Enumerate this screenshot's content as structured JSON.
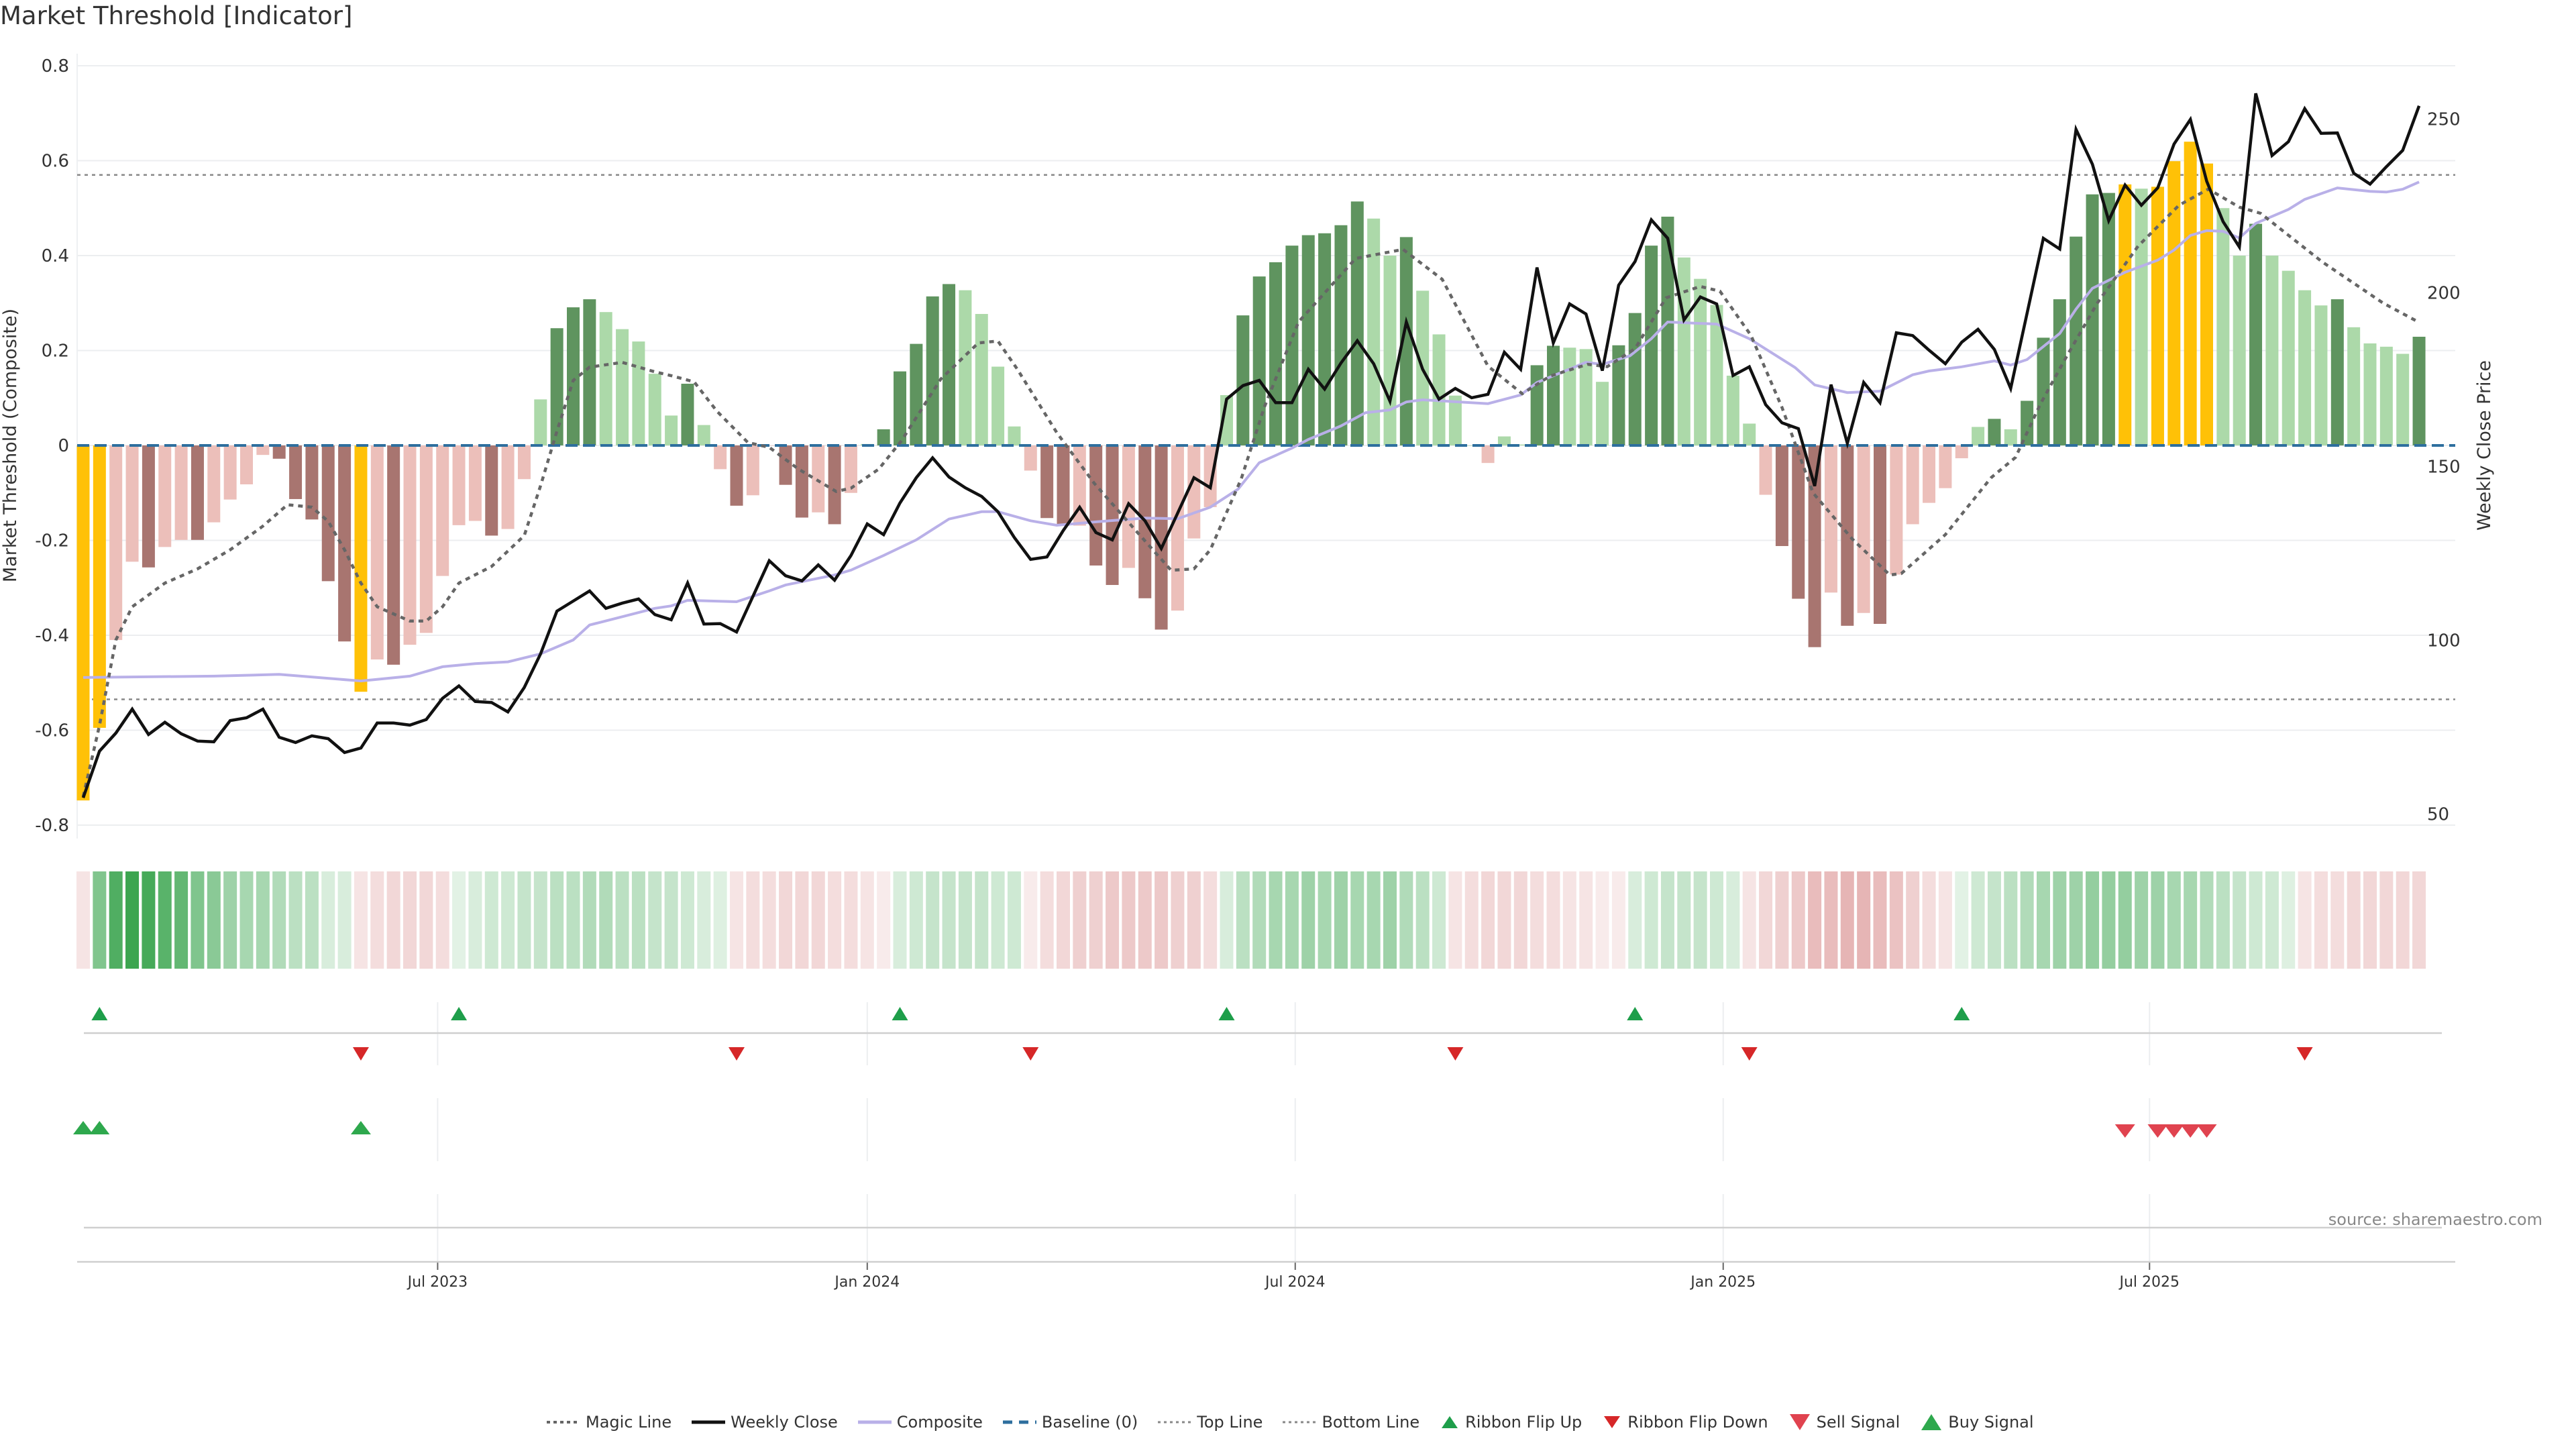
{
  "title": "Market Threshold [Indicator]",
  "source": "source: sharemaestro.com",
  "legend": {
    "magic_line": "Magic Line",
    "weekly_close": "Weekly Close",
    "composite": "Composite",
    "baseline": "Baseline (0)",
    "top_line": "Top Line",
    "bottom_line": "Bottom Line",
    "ribbon_flip_up": "Ribbon Flip Up",
    "ribbon_flip_down": "Ribbon Flip Down",
    "sell_signal": "Sell Signal",
    "buy_signal": "Buy Signal"
  },
  "colors": {
    "Y": "#FFC107",
    "G": "#5f945f",
    "g": "#acd9a9",
    "R": "#a87570",
    "r": "#ecbfba",
    "weekly_close": "#111111",
    "composite": "#b9b0e8",
    "magic": "#666666",
    "baseline": "#2e6f9e",
    "threshold_lines": "#888888",
    "flip_up": "#1e9e4a",
    "flip_down": "#d62728",
    "sell": "#e0434f",
    "buy": "#2ea84d",
    "ribbon_green": [
      60,
      165,
      80
    ],
    "ribbon_red": [
      210,
      120,
      120
    ]
  },
  "chart_data": {
    "type": "bar",
    "title": "Market Threshold [Indicator]",
    "ylabel": "Market Threshold (Composite)",
    "ylabel_right": "Weekly Close Price",
    "ylim": [
      -0.8,
      0.8
    ],
    "ylim_right": [
      50,
      250
    ],
    "yticks": [
      "0.8",
      "0.6",
      "0.4",
      "0.2",
      "0",
      "-0.2",
      "-0.4",
      "-0.6",
      "-0.8"
    ],
    "yticks_right": [
      "250",
      "200",
      "150",
      "100",
      "50"
    ],
    "x_unit": "week index",
    "xticks": [
      {
        "label": "Jul 2023",
        "week": 21.7
      },
      {
        "label": "Jan 2024",
        "week": 48.0
      },
      {
        "label": "Jul 2024",
        "week": 74.2
      },
      {
        "label": "Jan 2025",
        "week": 100.4
      },
      {
        "label": "Jul 2025",
        "week": 126.5
      }
    ],
    "top_line": 0.57,
    "bottom_line": -0.535,
    "baseline": 0,
    "composite_bars": [
      -0.748,
      -0.595,
      -0.41,
      -0.245,
      -0.257,
      -0.214,
      -0.199,
      -0.199,
      -0.162,
      -0.114,
      -0.082,
      -0.02,
      -0.028,
      -0.113,
      -0.156,
      -0.286,
      -0.413,
      -0.519,
      -0.451,
      -0.462,
      -0.42,
      -0.395,
      -0.275,
      -0.168,
      -0.159,
      -0.19,
      -0.176,
      -0.071,
      0.097,
      0.247,
      0.291,
      0.308,
      0.281,
      0.245,
      0.219,
      0.151,
      0.063,
      0.13,
      0.043,
      -0.05,
      -0.127,
      -0.105,
      0,
      -0.083,
      -0.152,
      -0.141,
      -0.166,
      -0.1,
      0.003,
      0.034,
      0.156,
      0.214,
      0.314,
      0.34,
      0.327,
      0.277,
      0.166,
      0.04,
      -0.053,
      -0.153,
      -0.169,
      -0.169,
      -0.253,
      -0.294,
      -0.258,
      -0.322,
      -0.388,
      -0.348,
      -0.196,
      -0.13,
      0.106,
      0.274,
      0.356,
      0.386,
      0.421,
      0.443,
      0.447,
      0.464,
      0.514,
      0.478,
      0.4,
      0.439,
      0.326,
      0.234,
      0.105,
      0,
      -0.037,
      0.019,
      0.002,
      0.169,
      0.21,
      0.206,
      0.203,
      0.134,
      0.211,
      0.279,
      0.421,
      0.482,
      0.396,
      0.351,
      0.296,
      0.147,
      0.046,
      -0.104,
      -0.212,
      -0.323,
      -0.425,
      -0.31,
      -0.38,
      -0.353,
      -0.376,
      -0.272,
      -0.166,
      -0.121,
      -0.09,
      -0.027,
      0.039,
      0.056,
      0.034,
      0.094,
      0.227,
      0.308,
      0.44,
      0.529,
      0.532,
      0.55,
      0.541,
      0.545,
      0.599,
      0.64,
      0.594,
      0.5,
      0.4,
      0.467,
      0.4,
      0.368,
      0.327,
      0.295,
      0.308,
      0.249,
      0.215,
      0.208,
      0.193,
      0.229
    ],
    "bar_color_codes": "YYrrRrrRrrrrRRRRRYrRrrrrrRrrgGGGgggggGgrRrrRRrRrgGGGGGggggrRRrRRrRRrrrgGGGGGGGGggGggggrggGGgggGGGGgggggrRRRrRrRrrrrrgGgGGGGGGYgYYYYggGggggGggggG",
    "weekly_close": [
      54.7,
      68.1,
      73.3,
      80.2,
      72.9,
      76.4,
      73.1,
      71.0,
      70.8,
      76.9,
      77.7,
      80.2,
      72.1,
      70.6,
      72.5,
      71.7,
      67.7,
      69.0,
      76.2,
      76.2,
      75.6,
      77.2,
      83.3,
      86.9,
      82.4,
      82.1,
      79.4,
      86.4,
      96.1,
      108.4,
      111.3,
      114.2,
      109.2,
      110.7,
      111.9,
      107.4,
      105.9,
      116.5,
      104.7,
      104.8,
      102.4,
      112.6,
      122.9,
      118.6,
      117.1,
      121.7,
      117.3,
      124.4,
      133.5,
      130.4,
      139.5,
      146.8,
      152.5,
      147.0,
      143.9,
      141.4,
      137.0,
      129.6,
      123.3,
      124.0,
      131.6,
      138.3,
      131.0,
      128.9,
      139.3,
      134.4,
      126.4,
      136.6,
      146.8,
      143.9,
      169.4,
      173.3,
      174.8,
      168.4,
      168.4,
      178.0,
      172.3,
      179.8,
      186.2,
      179.6,
      168.8,
      191.6,
      178.0,
      169.4,
      172.5,
      169.8,
      170.8,
      182.9,
      178.0,
      207.3,
      185.6,
      196.8,
      193.9,
      177.6,
      202.2,
      209.0,
      221.0,
      215.7,
      192.2,
      198.8,
      196.8,
      176.2,
      178.7,
      167.8,
      162.6,
      160.9,
      144.4,
      173.6,
      156.7,
      174.2,
      168.4,
      188.5,
      187.7,
      183.5,
      179.6,
      185.8,
      189.5,
      183.7,
      172.5,
      194.1,
      215.7,
      212.6,
      247.0,
      237.0,
      220.8,
      231.0,
      225.2,
      230.2,
      242.8,
      249.9,
      232.1,
      220.5,
      213.2,
      257.4,
      239.5,
      243.5,
      253.0,
      245.9,
      246.0,
      234.4,
      231.3,
      236.3,
      241.0,
      253.8
    ],
    "composite_line": [
      [
        0,
        89.3
      ],
      [
        8,
        89.7
      ],
      [
        12,
        90.2
      ],
      [
        17,
        88.3
      ],
      [
        20,
        89.7
      ],
      [
        22,
        92.4
      ],
      [
        24,
        93.3
      ],
      [
        26,
        93.8
      ],
      [
        28,
        96.1
      ],
      [
        30,
        100.1
      ],
      [
        31,
        104.4
      ],
      [
        33,
        106.8
      ],
      [
        35,
        109.2
      ],
      [
        36,
        109.9
      ],
      [
        37,
        111.5
      ],
      [
        40,
        111.1
      ],
      [
        42,
        114.2
      ],
      [
        43,
        115.9
      ],
      [
        46,
        118.8
      ],
      [
        47,
        120.2
      ],
      [
        49,
        124.4
      ],
      [
        51,
        128.9
      ],
      [
        53,
        134.9
      ],
      [
        55,
        137.0
      ],
      [
        56,
        137.0
      ],
      [
        58,
        134.4
      ],
      [
        59.6,
        133.1
      ],
      [
        62,
        134.1
      ],
      [
        65,
        135.2
      ],
      [
        67,
        135.0
      ],
      [
        69,
        138.3
      ],
      [
        70.7,
        143.5
      ],
      [
        72,
        151.1
      ],
      [
        74,
        155.3
      ],
      [
        75,
        157.8
      ],
      [
        77,
        161.7
      ],
      [
        78.5,
        165.5
      ],
      [
        80,
        166.3
      ],
      [
        81,
        168.6
      ],
      [
        82,
        169.2
      ],
      [
        86,
        168.1
      ],
      [
        88,
        170.6
      ],
      [
        89,
        174.2
      ],
      [
        92,
        180.0
      ],
      [
        93,
        179.4
      ],
      [
        94.7,
        181.9
      ],
      [
        96,
        186.8
      ],
      [
        97,
        191.6
      ],
      [
        100,
        191.0
      ],
      [
        102,
        186.8
      ],
      [
        104.8,
        178.5
      ],
      [
        106,
        173.5
      ],
      [
        108,
        171.3
      ],
      [
        110,
        171.7
      ],
      [
        112,
        176.4
      ],
      [
        113,
        177.5
      ],
      [
        115,
        178.7
      ],
      [
        117,
        180.4
      ],
      [
        118,
        179.2
      ],
      [
        119,
        180.8
      ],
      [
        121,
        188.3
      ],
      [
        122,
        195.3
      ],
      [
        123,
        201.3
      ],
      [
        125,
        205.9
      ],
      [
        127,
        209.4
      ],
      [
        128,
        212.3
      ],
      [
        129,
        216.5
      ],
      [
        130,
        217.9
      ],
      [
        131,
        217.7
      ],
      [
        132,
        215.8
      ],
      [
        133,
        220.0
      ],
      [
        135,
        224.0
      ],
      [
        136,
        226.9
      ],
      [
        138,
        230.2
      ],
      [
        140,
        229.2
      ],
      [
        141,
        229.0
      ],
      [
        142,
        229.8
      ],
      [
        143,
        231.9
      ]
    ],
    "magic_line": [
      [
        0,
        -0.74
      ],
      [
        1,
        -0.59
      ],
      [
        2,
        -0.41
      ],
      [
        3,
        -0.34
      ],
      [
        5,
        -0.29
      ],
      [
        7,
        -0.26
      ],
      [
        9,
        -0.22
      ],
      [
        11,
        -0.17
      ],
      [
        12.5,
        -0.125
      ],
      [
        14,
        -0.13
      ],
      [
        15,
        -0.16
      ],
      [
        16,
        -0.22
      ],
      [
        17,
        -0.29
      ],
      [
        18,
        -0.34
      ],
      [
        20,
        -0.37
      ],
      [
        21,
        -0.37
      ],
      [
        22,
        -0.34
      ],
      [
        23,
        -0.29
      ],
      [
        25,
        -0.255
      ],
      [
        27,
        -0.19
      ],
      [
        28,
        -0.085
      ],
      [
        29,
        0.03
      ],
      [
        30,
        0.137
      ],
      [
        31,
        0.165
      ],
      [
        33,
        0.175
      ],
      [
        35,
        0.155
      ],
      [
        36,
        0.147
      ],
      [
        37.4,
        0.134
      ],
      [
        38.8,
        0.072
      ],
      [
        40.7,
        0.006
      ],
      [
        42,
        -0.004
      ],
      [
        43.8,
        -0.05
      ],
      [
        46.1,
        -0.097
      ],
      [
        47,
        -0.09
      ],
      [
        48.7,
        -0.05
      ],
      [
        50.1,
        0.01
      ],
      [
        52.5,
        0.14
      ],
      [
        54.8,
        0.216
      ],
      [
        56,
        0.22
      ],
      [
        57.2,
        0.16
      ],
      [
        59.6,
        0.027
      ],
      [
        61.9,
        -0.08
      ],
      [
        64.3,
        -0.174
      ],
      [
        66.6,
        -0.263
      ],
      [
        68,
        -0.26
      ],
      [
        69,
        -0.22
      ],
      [
        70.9,
        -0.07
      ],
      [
        72.3,
        0.08
      ],
      [
        74.4,
        0.26
      ],
      [
        77.9,
        0.394
      ],
      [
        80.8,
        0.413
      ],
      [
        83.2,
        0.35
      ],
      [
        86,
        0.167
      ],
      [
        88.1,
        0.109
      ],
      [
        89.8,
        0.146
      ],
      [
        92.1,
        0.171
      ],
      [
        93.3,
        0.166
      ],
      [
        95,
        0.204
      ],
      [
        96.9,
        0.311
      ],
      [
        99,
        0.335
      ],
      [
        100.2,
        0.325
      ],
      [
        102.1,
        0.232
      ],
      [
        104,
        0.08
      ],
      [
        105.9,
        -0.1
      ],
      [
        108.3,
        -0.197
      ],
      [
        110.6,
        -0.273
      ],
      [
        111.3,
        -0.27
      ],
      [
        114,
        -0.188
      ],
      [
        116.8,
        -0.068
      ],
      [
        118.3,
        -0.025
      ],
      [
        119.8,
        0.086
      ],
      [
        121.3,
        0.18
      ],
      [
        123.3,
        0.3
      ],
      [
        125.8,
        0.42
      ],
      [
        128.3,
        0.506
      ],
      [
        130.1,
        0.54
      ],
      [
        132,
        0.502
      ],
      [
        133.3,
        0.489
      ],
      [
        137.1,
        0.386
      ],
      [
        140.8,
        0.3
      ],
      [
        142.8,
        0.263
      ]
    ],
    "ribbon": [
      -0.15,
      0.6,
      0.85,
      1,
      0.9,
      0.8,
      0.75,
      0.6,
      0.55,
      0.45,
      0.4,
      0.4,
      0.35,
      0.3,
      0.3,
      0.15,
      0.15,
      -0.15,
      -0.2,
      -0.25,
      -0.25,
      -0.25,
      -0.2,
      0.1,
      0.15,
      0.2,
      0.2,
      0.25,
      0.25,
      0.3,
      0.3,
      0.35,
      0.35,
      0.3,
      0.3,
      0.25,
      0.25,
      0.2,
      0.15,
      0.12,
      -0.15,
      -0.2,
      -0.2,
      -0.25,
      -0.25,
      -0.25,
      -0.2,
      -0.2,
      -0.15,
      -0.1,
      0.15,
      0.2,
      0.25,
      0.25,
      0.25,
      0.25,
      0.2,
      0.2,
      -0.1,
      -0.2,
      -0.25,
      -0.3,
      -0.3,
      -0.35,
      -0.35,
      -0.35,
      -0.35,
      -0.3,
      -0.3,
      -0.2,
      0.15,
      0.3,
      0.35,
      0.4,
      0.4,
      0.45,
      0.4,
      0.45,
      0.4,
      0.4,
      0.45,
      0.35,
      0.3,
      0.2,
      -0.15,
      -0.2,
      -0.25,
      -0.25,
      -0.25,
      -0.2,
      -0.2,
      -0.15,
      -0.15,
      -0.1,
      -0.1,
      0.15,
      0.2,
      0.25,
      0.25,
      0.25,
      0.2,
      0.15,
      -0.15,
      -0.25,
      -0.3,
      -0.35,
      -0.45,
      -0.45,
      -0.5,
      -0.5,
      -0.45,
      -0.4,
      -0.3,
      -0.2,
      -0.15,
      0.1,
      0.2,
      0.25,
      0.3,
      0.35,
      0.4,
      0.45,
      0.45,
      0.5,
      0.5,
      0.5,
      0.45,
      0.45,
      0.4,
      0.4,
      0.35,
      0.3,
      0.25,
      0.2,
      0.2,
      0.12,
      -0.15,
      -0.2,
      -0.2,
      -0.25,
      -0.25,
      -0.25,
      -0.25,
      -0.25
    ],
    "ribbon_flip_up_weeks": [
      1,
      23,
      50,
      70,
      95,
      115
    ],
    "ribbon_flip_down_weeks": [
      17,
      40,
      58,
      84,
      102,
      136
    ],
    "buy_signal_weeks": [
      0,
      1,
      17
    ],
    "sell_signal_weeks": [
      125,
      127,
      128,
      129,
      130
    ],
    "legend_position": "bottom-center"
  }
}
